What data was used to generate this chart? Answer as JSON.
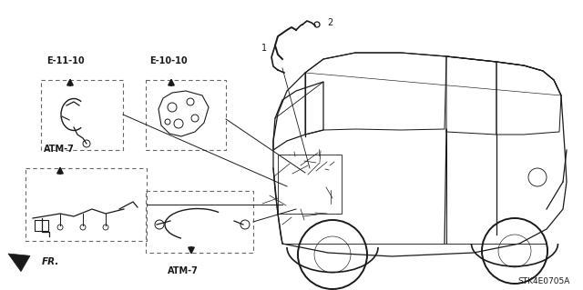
{
  "bg_color": "#ffffff",
  "diagram_code": "STK4E0705A",
  "dk": "#1a1a1a",
  "grey": "#666666",
  "figsize": [
    6.4,
    3.19
  ],
  "dpi": 100,
  "labels": {
    "e11": "E-11-10",
    "e10": "E-10-10",
    "atm7_top": "ATM-7",
    "atm7_bot": "ATM-7",
    "fr": "FR.",
    "num1": "1",
    "num2": "2"
  }
}
